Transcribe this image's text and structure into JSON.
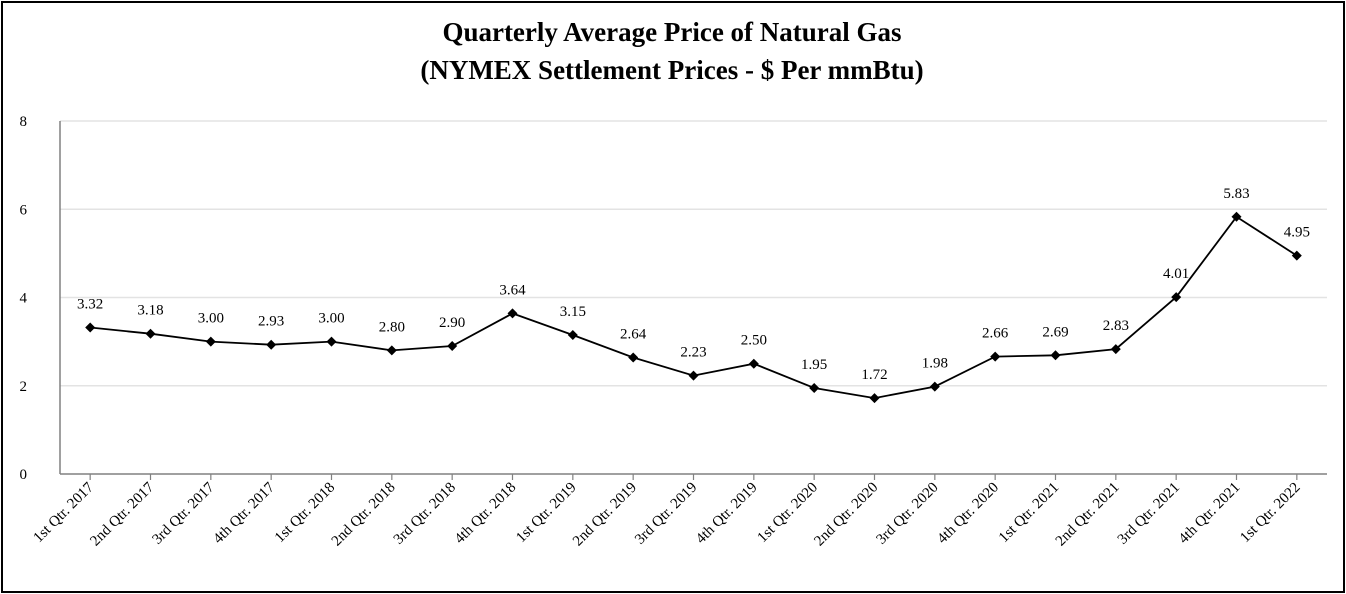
{
  "chart_data": {
    "type": "line",
    "title": "Quarterly Average Price of Natural Gas",
    "subtitle": "(NYMEX Settlement Prices - $ Per mmBtu)",
    "xlabel": "",
    "ylabel": "",
    "ylim": [
      0,
      8
    ],
    "yticks": [
      0,
      2,
      4,
      6,
      8
    ],
    "grid": true,
    "legend": "none",
    "categories": [
      "1st Qtr. 2017",
      "2nd Qtr. 2017",
      "3rd Qtr. 2017",
      "4th Qtr. 2017",
      "1st Qtr. 2018",
      "2nd Qtr. 2018",
      "3rd Qtr. 2018",
      "4th Qtr. 2018",
      "1st Qtr. 2019",
      "2nd Qtr. 2019",
      "3rd Qtr. 2019",
      "4th Qtr. 2019",
      "1st Qtr. 2020",
      "2nd Qtr. 2020",
      "3rd Qtr. 2020",
      "4th Qtr. 2020",
      "1st Qtr. 2021",
      "2nd Qtr. 2021",
      "3rd Qtr. 2021",
      "4th Qtr. 2021",
      "1st Qtr. 2022"
    ],
    "series": [
      {
        "name": "NYMEX Settlement Price",
        "values": [
          3.32,
          3.18,
          3.0,
          2.93,
          3.0,
          2.8,
          2.9,
          3.64,
          3.15,
          2.64,
          2.23,
          2.5,
          1.95,
          1.72,
          1.98,
          2.66,
          2.69,
          2.83,
          4.01,
          5.83,
          4.95
        ],
        "labels": [
          "3.32",
          "3.18",
          "3.00",
          "2.93",
          "3.00",
          "2.80",
          "2.90",
          "3.64",
          "3.15",
          "2.64",
          "2.23",
          "2.50",
          "1.95",
          "1.72",
          "1.98",
          "2.66",
          "2.69",
          "2.83",
          "4.01",
          "5.83",
          "4.95"
        ]
      }
    ],
    "colors": {
      "line": "#000000",
      "grid": "#e3e3e3",
      "axis": "#808080"
    }
  }
}
